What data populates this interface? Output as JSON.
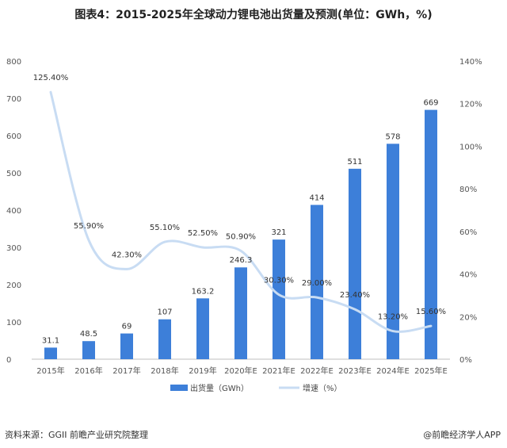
{
  "title": "图表4：2015-2025年全球动力锂电池出货量及预测(单位：GWh，%)",
  "source_note": "资料来源：GGII 前瞻产业研究院整理",
  "brand_note": "@前瞻经济学人APP",
  "chart_data": {
    "type": "bar",
    "categories": [
      "2015年",
      "2016年",
      "2017年",
      "2018年",
      "2019年",
      "2020年E",
      "2021年E",
      "2022年E",
      "2023年E",
      "2024年E",
      "2025年E"
    ],
    "series": [
      {
        "name": "出货量（GWh）",
        "type": "bar",
        "axis": "left",
        "values": [
          31.1,
          48.5,
          69,
          107,
          163.2,
          246.3,
          321,
          414,
          511,
          578,
          669
        ],
        "labels": [
          "31.1",
          "48.5",
          "69",
          "107",
          "163.2",
          "246.3",
          "321",
          "414",
          "511",
          "578",
          "669"
        ]
      },
      {
        "name": "增速（%）",
        "type": "line",
        "axis": "right",
        "values": [
          125.4,
          55.9,
          42.3,
          55.1,
          52.5,
          50.9,
          30.3,
          29.0,
          23.4,
          13.2,
          15.6
        ],
        "labels": [
          "125.40%",
          "55.90%",
          "42.30%",
          "55.10%",
          "52.50%",
          "50.90%",
          "30.30%",
          "29.00%",
          "23.40%",
          "13.20%",
          "15.60%"
        ]
      }
    ],
    "ylim_left": [
      0,
      800
    ],
    "yticks_left": [
      "0",
      "100",
      "200",
      "300",
      "400",
      "500",
      "600",
      "700",
      "800"
    ],
    "ylim_right": [
      0,
      140
    ],
    "yticks_right": [
      "0%",
      "20%",
      "40%",
      "60%",
      "80%",
      "100%",
      "120%",
      "140%"
    ],
    "legend_position": "bottom",
    "grid": false,
    "colors": {
      "bar": "#3d7fd9",
      "line": "#c8dcf3"
    }
  }
}
